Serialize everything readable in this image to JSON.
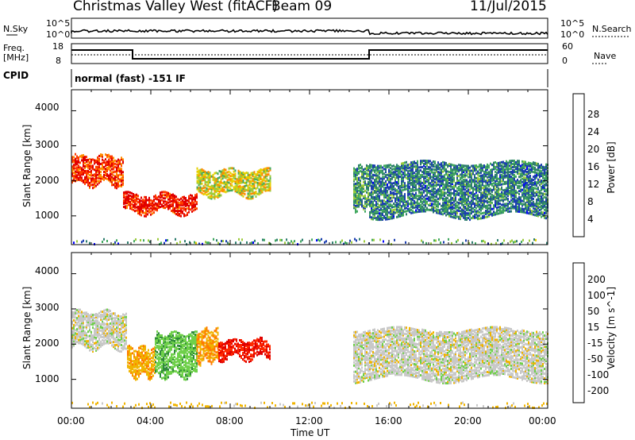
{
  "header": {
    "station": "Christmas Valley West (fitACF)",
    "beam": "Beam 09",
    "date": "11/Jul/2015"
  },
  "strips": {
    "nsky_label": "N.Sky",
    "nsearch_label": "N.Search",
    "nsky_ticks": [
      "10^5",
      "10^0"
    ],
    "nsky_right_ticks": [
      "10^5",
      "10^0"
    ],
    "freq_label": "Freq.",
    "freq_unit": "[MHz]",
    "freq_ticks": [
      "18",
      "8"
    ],
    "nave_label": "Nave",
    "nave_ticks": [
      "60",
      "0"
    ],
    "cpid_label": "CPID",
    "cpid_text": "normal (fast) -151 IF"
  },
  "chart_data": [
    {
      "type": "heatmap",
      "panel": "power",
      "ylabel": "Slant Range [km]",
      "y_ticks": [
        "4000",
        "3000",
        "2000",
        "1000"
      ],
      "ylim": [
        180,
        4600
      ],
      "xlim_hours": [
        0,
        24
      ],
      "colorbar_label": "Power [dB]",
      "colorbar_ticks": [
        "28",
        "24",
        "20",
        "16",
        "12",
        "8",
        "4"
      ],
      "colorbar_colors": [
        "#e00000",
        "#ff3b00",
        "#ff8c00",
        "#e6d000",
        "#9ccb3c",
        "#41a85f",
        "#2e7d6e",
        "#1c3fb0",
        "#0000ff"
      ],
      "echo_regions": [
        {
          "start_h": 0.0,
          "end_h": 2.6,
          "range_low_km": 1900,
          "range_high_km": 2700,
          "power_db": 26
        },
        {
          "start_h": 2.6,
          "end_h": 6.3,
          "range_low_km": 1100,
          "range_high_km": 1600,
          "power_db": 28
        },
        {
          "start_h": 6.3,
          "end_h": 10.0,
          "range_low_km": 1600,
          "range_high_km": 2300,
          "power_db": 18
        },
        {
          "start_h": 14.2,
          "end_h": 15.0,
          "range_low_km": 1200,
          "range_high_km": 2400,
          "power_db": 12
        },
        {
          "start_h": 15.0,
          "end_h": 24.0,
          "range_low_km": 1000,
          "range_high_km": 2500,
          "power_db": 10
        }
      ]
    },
    {
      "type": "heatmap",
      "panel": "velocity",
      "ylabel": "Slant Range [km]",
      "y_ticks": [
        "4000",
        "3000",
        "2000",
        "1000"
      ],
      "ylim": [
        180,
        4600
      ],
      "xlim_hours": [
        0,
        24
      ],
      "x_ticks": [
        "00:00",
        "04:00",
        "08:00",
        "12:00",
        "16:00",
        "20:00",
        "00:00"
      ],
      "xlabel": "Time UT",
      "colorbar_label": "Velocity [m s^-1]",
      "colorbar_ticks": [
        "200",
        "100",
        "50",
        "15",
        "-15",
        "-50",
        "-100",
        "-200"
      ],
      "colorbar_colors": [
        "#1f2fb0",
        "#3a7fc0",
        "#2f8a3a",
        "#6fd04a",
        "#c8c8c8",
        "#f0b400",
        "#ff7a00",
        "#ff2a00",
        "#e00000"
      ],
      "echo_regions": [
        {
          "start_h": 0.0,
          "end_h": 2.8,
          "range_low_km": 1900,
          "range_high_km": 2900,
          "velocity_ms": 0
        },
        {
          "start_h": 2.8,
          "end_h": 4.2,
          "range_low_km": 1100,
          "range_high_km": 1900,
          "velocity_ms": -40
        },
        {
          "start_h": 4.2,
          "end_h": 6.3,
          "range_low_km": 1100,
          "range_high_km": 2300,
          "velocity_ms": 40
        },
        {
          "start_h": 6.3,
          "end_h": 7.4,
          "range_low_km": 1500,
          "range_high_km": 2400,
          "velocity_ms": -50
        },
        {
          "start_h": 7.4,
          "end_h": 10.0,
          "range_low_km": 1600,
          "range_high_km": 2100,
          "velocity_ms": -200
        },
        {
          "start_h": 14.2,
          "end_h": 24.0,
          "range_low_km": 1000,
          "range_high_km": 2400,
          "velocity_ms": 0
        }
      ]
    }
  ]
}
